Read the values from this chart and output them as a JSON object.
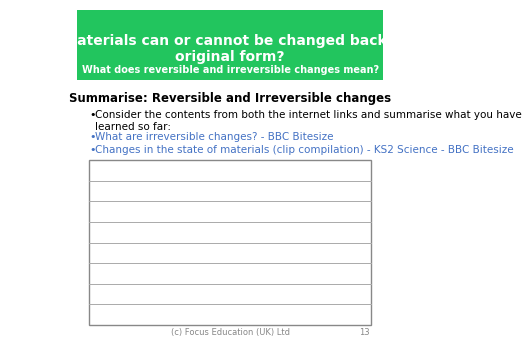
{
  "header_bg_color": "#22C55E",
  "header_title": "Which materials can or cannot be changed back to their\noriginal form?",
  "header_subtitle": "What does reversible and irreversible changes mean?",
  "section_title": "Summarise: Reversible and Irreversible changes",
  "bullet1": "Consider the contents from both the internet links and summarise what you have\nlearned so far:",
  "link1": "What are irreversible changes? - BBC Bitesize",
  "link2": "Changes in the state of materials (clip compilation) - KS2 Science - BBC Bitesize",
  "link_color": "#4472C4",
  "footer_text": "(c) Focus Education (UK) Ltd",
  "footer_page": "13",
  "num_lines": 8,
  "bg_color": "#FFFFFF",
  "line_color": "#AAAAAA",
  "border_color": "#888888"
}
